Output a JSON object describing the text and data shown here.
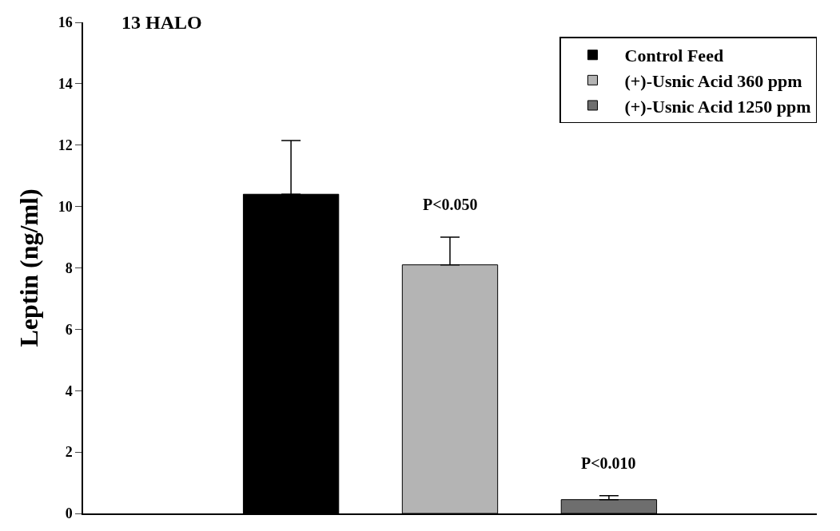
{
  "chart_data": {
    "type": "bar",
    "title": "13 HALO",
    "ylabel": "Leptin (ng/ml)",
    "categories": [
      null
    ],
    "series": [
      {
        "name": "Control Feed",
        "color": "#000000",
        "values": [
          10.4
        ],
        "errors": [
          [
            10.4,
            12.15
          ]
        ]
      },
      {
        "name": "(+)-Usnic Acid 360 ppm",
        "color": "#b4b4b4",
        "values": [
          8.1
        ],
        "errors": [
          [
            8.1,
            9.0
          ]
        ]
      },
      {
        "name": "(+)-Usnic Acid 1250 ppm",
        "color": "#6e6e6e",
        "values": [
          0.45
        ],
        "errors": [
          [
            0.45,
            0.58
          ]
        ]
      }
    ],
    "annotations": [
      "P<0.050",
      "P<0.010"
    ],
    "ylim": [
      0,
      16
    ],
    "yticks": [
      0,
      2,
      4,
      6,
      8,
      10,
      12,
      14,
      16
    ],
    "legend": "top right"
  }
}
